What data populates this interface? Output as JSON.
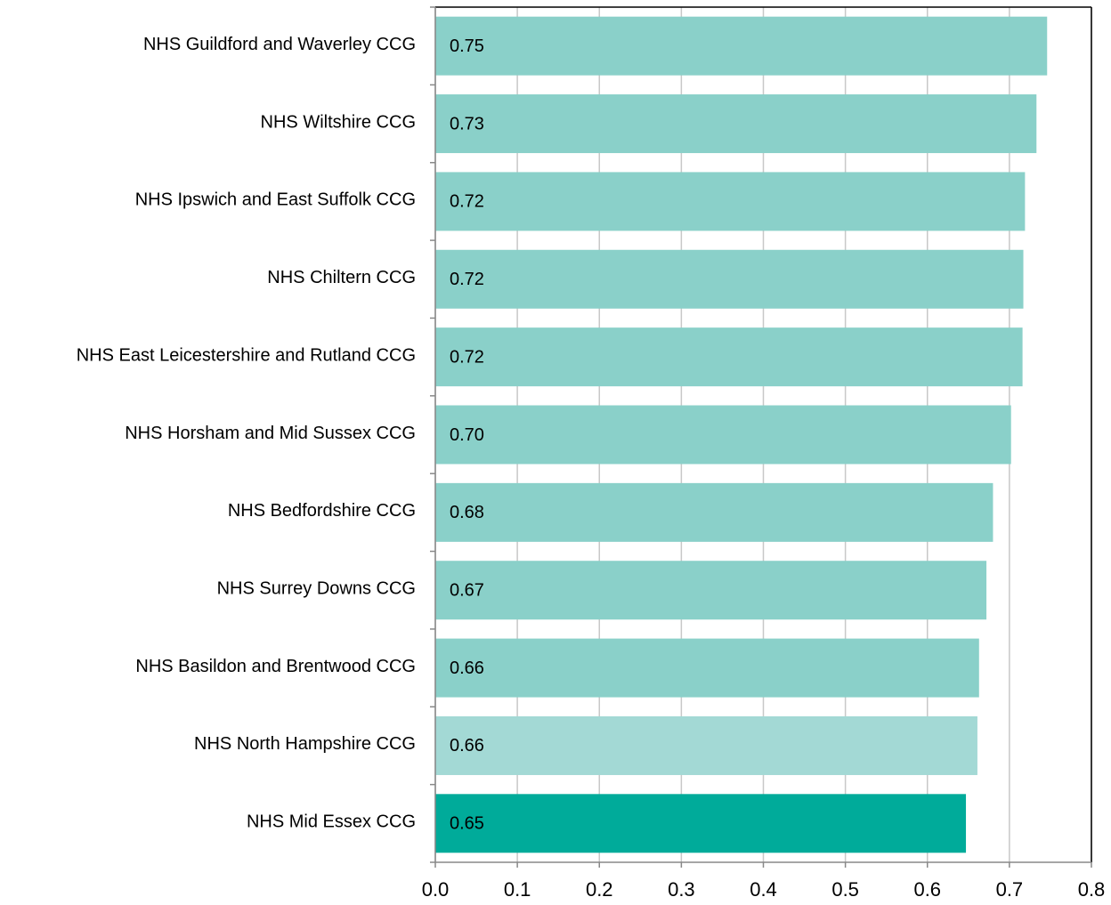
{
  "chart_data": {
    "type": "barh",
    "categories": [
      "NHS Guildford and Waverley CCG",
      "NHS Wiltshire CCG",
      "NHS Ipswich and East Suffolk CCG",
      "NHS Chiltern CCG",
      "NHS East Leicestershire and Rutland CCG",
      "NHS Horsham and Mid Sussex CCG",
      "NHS Bedfordshire CCG",
      "NHS Surrey Downs CCG",
      "NHS Basildon and Brentwood CCG",
      "NHS North Hampshire CCG",
      "NHS Mid Essex CCG"
    ],
    "values": [
      0.746,
      0.733,
      0.719,
      0.717,
      0.716,
      0.702,
      0.68,
      0.672,
      0.663,
      0.661,
      0.647
    ],
    "value_labels": [
      "0.75",
      "0.73",
      "0.72",
      "0.72",
      "0.72",
      "0.70",
      "0.68",
      "0.67",
      "0.66",
      "0.66",
      "0.65"
    ],
    "colors": [
      "#8ad0c9",
      "#8ad0c9",
      "#8ad0c9",
      "#8ad0c9",
      "#8ad0c9",
      "#8ad0c9",
      "#8ad0c9",
      "#8ad0c9",
      "#8ad0c9",
      "#a3d9d5",
      "#00ab9a"
    ],
    "xlim": [
      0,
      0.8
    ],
    "xticks": [
      {
        "value": 0,
        "label": "0.0"
      },
      0.1,
      0.2,
      0.3,
      0.4,
      0.5,
      0.6,
      0.7,
      0.8
    ],
    "grid": true
  }
}
